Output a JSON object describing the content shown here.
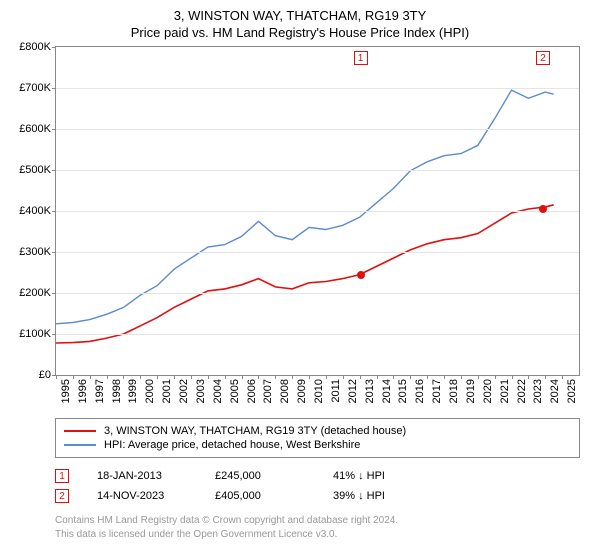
{
  "title": "3, WINSTON WAY, THATCHAM, RG19 3TY",
  "subtitle": "Price paid vs. HM Land Registry's House Price Index (HPI)",
  "chart": {
    "type": "line",
    "background_color": "#ffffff",
    "grid_color": "#e5e5e5",
    "axis_color": "#888888",
    "xmin": 1995,
    "xmax": 2026,
    "ymin": 0,
    "ymax": 800000,
    "ytick_step": 100000,
    "yticks": [
      "£0",
      "£100K",
      "£200K",
      "£300K",
      "£400K",
      "£500K",
      "£600K",
      "£700K",
      "£800K"
    ],
    "xticks": [
      1995,
      1996,
      1997,
      1998,
      1999,
      2000,
      2001,
      2002,
      2003,
      2004,
      2005,
      2006,
      2007,
      2008,
      2009,
      2010,
      2011,
      2012,
      2013,
      2014,
      2015,
      2016,
      2017,
      2018,
      2019,
      2020,
      2021,
      2022,
      2023,
      2024,
      2025
    ],
    "series": [
      {
        "name": "price_paid",
        "label": "3, WINSTON WAY, THATCHAM, RG19 3TY (detached house)",
        "color": "#e01010",
        "line_width": 1.6,
        "points": [
          [
            1995,
            78000
          ],
          [
            1996,
            79000
          ],
          [
            1997,
            82000
          ],
          [
            1998,
            90000
          ],
          [
            1999,
            100000
          ],
          [
            2000,
            120000
          ],
          [
            2001,
            140000
          ],
          [
            2002,
            165000
          ],
          [
            2003,
            185000
          ],
          [
            2004,
            205000
          ],
          [
            2005,
            210000
          ],
          [
            2006,
            220000
          ],
          [
            2007,
            235000
          ],
          [
            2008,
            215000
          ],
          [
            2009,
            210000
          ],
          [
            2010,
            225000
          ],
          [
            2011,
            228000
          ],
          [
            2012,
            235000
          ],
          [
            2013,
            245000
          ],
          [
            2014,
            265000
          ],
          [
            2015,
            285000
          ],
          [
            2016,
            305000
          ],
          [
            2017,
            320000
          ],
          [
            2018,
            330000
          ],
          [
            2019,
            335000
          ],
          [
            2020,
            345000
          ],
          [
            2021,
            370000
          ],
          [
            2022,
            395000
          ],
          [
            2023,
            405000
          ],
          [
            2024,
            410000
          ],
          [
            2024.5,
            415000
          ]
        ]
      },
      {
        "name": "hpi",
        "label": "HPI: Average price, detached house, West Berkshire",
        "color": "#5b8bd0",
        "line_width": 1.4,
        "points": [
          [
            1995,
            125000
          ],
          [
            1996,
            128000
          ],
          [
            1997,
            135000
          ],
          [
            1998,
            148000
          ],
          [
            1999,
            165000
          ],
          [
            2000,
            195000
          ],
          [
            2001,
            218000
          ],
          [
            2002,
            258000
          ],
          [
            2003,
            285000
          ],
          [
            2004,
            312000
          ],
          [
            2005,
            318000
          ],
          [
            2006,
            338000
          ],
          [
            2007,
            375000
          ],
          [
            2008,
            340000
          ],
          [
            2009,
            330000
          ],
          [
            2010,
            360000
          ],
          [
            2011,
            355000
          ],
          [
            2012,
            365000
          ],
          [
            2013,
            385000
          ],
          [
            2014,
            420000
          ],
          [
            2015,
            455000
          ],
          [
            2016,
            498000
          ],
          [
            2017,
            520000
          ],
          [
            2018,
            535000
          ],
          [
            2019,
            540000
          ],
          [
            2020,
            560000
          ],
          [
            2021,
            625000
          ],
          [
            2022,
            695000
          ],
          [
            2023,
            675000
          ],
          [
            2024,
            690000
          ],
          [
            2024.5,
            685000
          ]
        ]
      }
    ],
    "markers": [
      {
        "id": "1",
        "color": "#e01010",
        "x": 2013.05,
        "y": 245000,
        "label_y": 790000
      },
      {
        "id": "2",
        "color": "#e01010",
        "x": 2023.87,
        "y": 405000,
        "label_y": 790000
      }
    ]
  },
  "legend": {
    "items": [
      {
        "color": "#e01010",
        "label": "3, WINSTON WAY, THATCHAM, RG19 3TY (detached house)"
      },
      {
        "color": "#5b8bd0",
        "label": "HPI: Average price, detached house, West Berkshire"
      }
    ]
  },
  "transactions": [
    {
      "marker": "1",
      "color": "#e01010",
      "date": "18-JAN-2013",
      "price": "£245,000",
      "delta": "41% ↓ HPI"
    },
    {
      "marker": "2",
      "color": "#e01010",
      "date": "14-NOV-2023",
      "price": "£405,000",
      "delta": "39% ↓ HPI"
    }
  ],
  "footer": {
    "line1": "Contains HM Land Registry data © Crown copyright and database right 2024.",
    "line2": "This data is licensed under the Open Government Licence v3.0."
  }
}
